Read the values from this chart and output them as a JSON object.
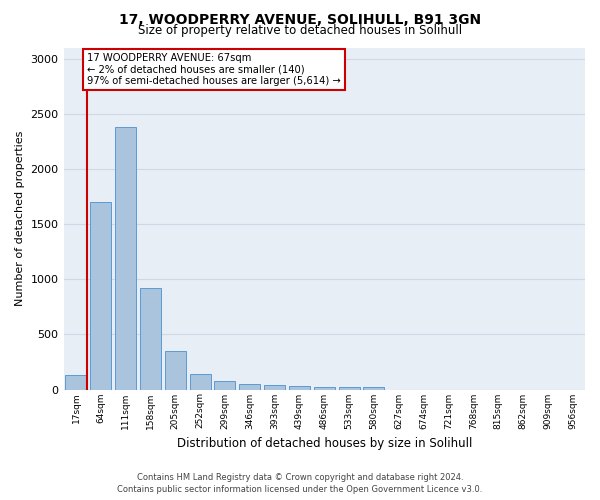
{
  "title_line1": "17, WOODPERRY AVENUE, SOLIHULL, B91 3GN",
  "title_line2": "Size of property relative to detached houses in Solihull",
  "xlabel": "Distribution of detached houses by size in Solihull",
  "ylabel": "Number of detached properties",
  "footer_line1": "Contains HM Land Registry data © Crown copyright and database right 2024.",
  "footer_line2": "Contains public sector information licensed under the Open Government Licence v3.0.",
  "annotation_line1": "17 WOODPERRY AVENUE: 67sqm",
  "annotation_line2": "← 2% of detached houses are smaller (140)",
  "annotation_line3": "97% of semi-detached houses are larger (5,614) →",
  "bar_labels": [
    "17sqm",
    "64sqm",
    "111sqm",
    "158sqm",
    "205sqm",
    "252sqm",
    "299sqm",
    "346sqm",
    "393sqm",
    "439sqm",
    "486sqm",
    "533sqm",
    "580sqm",
    "627sqm",
    "674sqm",
    "721sqm",
    "768sqm",
    "815sqm",
    "862sqm",
    "909sqm",
    "956sqm"
  ],
  "bar_values": [
    130,
    1700,
    2380,
    920,
    350,
    140,
    80,
    50,
    45,
    30,
    25,
    20,
    25,
    0,
    0,
    0,
    0,
    0,
    0,
    0,
    0
  ],
  "bar_color": "#aac4de",
  "bar_edge_color": "#5b9bd5",
  "annotation_box_color": "#ffffff",
  "annotation_box_edge_color": "#cc0000",
  "red_line_color": "#cc0000",
  "ylim": [
    0,
    3100
  ],
  "yticks": [
    0,
    500,
    1000,
    1500,
    2000,
    2500,
    3000
  ],
  "grid_color": "#d0d8e8",
  "background_color": "#e8eef5"
}
